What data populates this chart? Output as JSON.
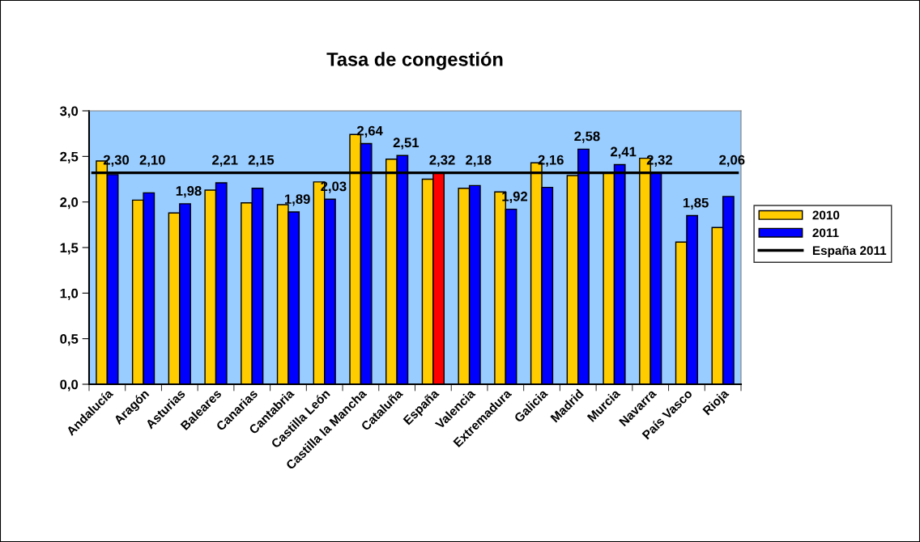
{
  "chart_data": {
    "type": "bar",
    "title": "Tasa de congestión",
    "categories": [
      "Andalucía",
      "Aragón",
      "Asturias",
      "Baleares",
      "Canarias",
      "Cantabria",
      "Castilla León",
      "Castilla la Mancha",
      "Cataluña",
      "España",
      "Valencia",
      "Extremadura",
      "Galicia",
      "Madrid",
      "Murcia",
      "Navarra",
      "País Vasco",
      "Rioja"
    ],
    "series": [
      {
        "name": "2010",
        "color": "#ffcc00",
        "values": [
          2.45,
          2.02,
          1.88,
          2.13,
          1.99,
          1.97,
          2.22,
          2.74,
          2.47,
          2.25,
          2.15,
          2.11,
          2.43,
          2.29,
          2.32,
          2.48,
          1.56,
          1.72
        ]
      },
      {
        "name": "2011",
        "color": "#0000ff",
        "colors": [
          "#0000ff",
          "#0000ff",
          "#0000ff",
          "#0000ff",
          "#0000ff",
          "#0000ff",
          "#0000ff",
          "#0000ff",
          "#0000ff",
          "#ff0000",
          "#0000ff",
          "#0000ff",
          "#0000ff",
          "#0000ff",
          "#0000ff",
          "#0000ff",
          "#0000ff",
          "#0000ff"
        ],
        "values": [
          2.3,
          2.1,
          1.98,
          2.21,
          2.15,
          1.89,
          2.03,
          2.64,
          2.51,
          2.32,
          2.18,
          1.92,
          2.16,
          2.58,
          2.41,
          2.32,
          1.85,
          2.06
        ],
        "value_labels": [
          "2,30",
          "2,10",
          "1,98",
          "2,21",
          "2,15",
          "1,89",
          "2,03",
          "2,64",
          "2,51",
          "2,32",
          "2,18",
          "1,92",
          "2,16",
          "2,58",
          "2,41",
          "2,32",
          "1,85",
          "2,06"
        ]
      }
    ],
    "ref_lines": [
      {
        "axis": "y",
        "value": 2.32,
        "label": "España 2011",
        "color": "#000000",
        "line_style": "solid"
      }
    ],
    "ylim": [
      0,
      3.0
    ],
    "yticks": [
      {
        "value": 0,
        "label": "0,0"
      },
      {
        "value": 0.5,
        "label": "0,5"
      },
      {
        "value": 1.0,
        "label": "1,0"
      },
      {
        "value": 1.5,
        "label": "1,5"
      },
      {
        "value": 2.0,
        "label": "2,0"
      },
      {
        "value": 2.5,
        "label": "2,5"
      },
      {
        "value": 3.0,
        "label": "3,0"
      }
    ],
    "grid": false,
    "legend": "right"
  }
}
